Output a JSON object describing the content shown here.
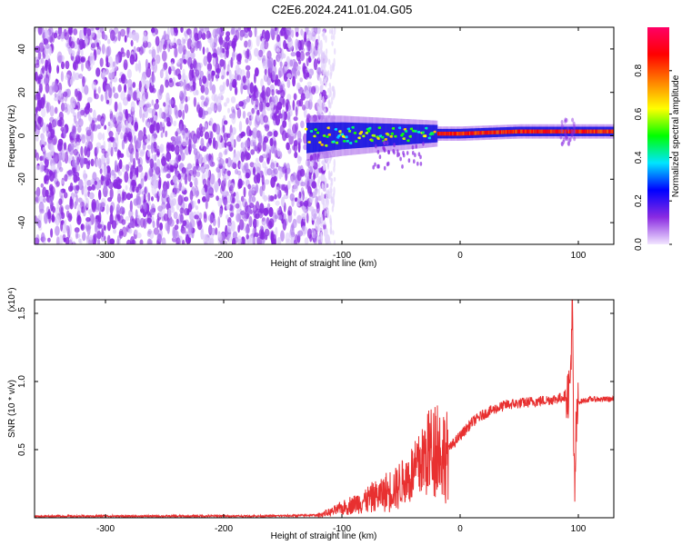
{
  "title": "C2E6.2024.241.01.04.G05",
  "chart_data": [
    {
      "type": "heatmap",
      "xlabel": "Height of straight line (km)",
      "ylabel": "Frequency (Hz)",
      "xlim": [
        -360,
        130
      ],
      "ylim": [
        -50,
        50
      ],
      "xticks": [
        -300,
        -200,
        -100,
        0,
        100
      ],
      "yticks": [
        -40,
        -20,
        0,
        20,
        40
      ],
      "grid": false,
      "colorbar": {
        "label": "Normalized spectral amplitude",
        "range": [
          0,
          1
        ],
        "ticks": [
          0.0,
          0.2,
          0.4,
          0.6,
          0.8
        ],
        "colormap": "rainbow (violet to red)",
        "colors": [
          "#f2e6ff",
          "#8a2be2",
          "#0000ff",
          "#00e5ff",
          "#00ff00",
          "#ffff00",
          "#ff8000",
          "#ff0000",
          "#ff0066"
        ]
      },
      "features": {
        "noise_region_x": [
          -360,
          -120
        ],
        "noise_amplitude": 0.1,
        "signal_band_x": [
          -130,
          130
        ],
        "signal_center_hz": [
          [
            -130,
            -1
          ],
          [
            -100,
            0
          ],
          [
            -60,
            0.5
          ],
          [
            -20,
            1
          ],
          [
            0,
            1
          ],
          [
            50,
            2
          ],
          [
            130,
            2
          ]
        ]
      }
    },
    {
      "type": "line",
      "xlabel": "Height of straight line (km)",
      "ylabel": "SNR (10 * v/v)",
      "y_multiplier": "(x10⁴)",
      "xlim": [
        -360,
        130
      ],
      "ylim": [
        0,
        1.6
      ],
      "xticks": [
        -300,
        -200,
        -100,
        0,
        100
      ],
      "yticks": [
        0.5,
        1.0,
        1.5
      ],
      "grid": false,
      "series": [
        {
          "color": "#e83030",
          "points": [
            [
              -360,
              0.01
            ],
            [
              -340,
              0.012
            ],
            [
              -320,
              0.01
            ],
            [
              -300,
              0.013
            ],
            [
              -280,
              0.01
            ],
            [
              -260,
              0.012
            ],
            [
              -240,
              0.011
            ],
            [
              -220,
              0.012
            ],
            [
              -200,
              0.013
            ],
            [
              -180,
              0.012
            ],
            [
              -160,
              0.013
            ],
            [
              -140,
              0.015
            ],
            [
              -120,
              0.02
            ],
            [
              -110,
              0.04
            ],
            [
              -100,
              0.07
            ],
            [
              -90,
              0.1
            ],
            [
              -80,
              0.13
            ],
            [
              -70,
              0.16
            ],
            [
              -60,
              0.2
            ],
            [
              -50,
              0.25
            ],
            [
              -40,
              0.32
            ],
            [
              -30,
              0.45
            ],
            [
              -20,
              0.55
            ],
            [
              -15,
              0.45
            ],
            [
              -10,
              0.5
            ],
            [
              -5,
              0.55
            ],
            [
              0,
              0.6
            ],
            [
              5,
              0.65
            ],
            [
              10,
              0.7
            ],
            [
              20,
              0.76
            ],
            [
              30,
              0.8
            ],
            [
              40,
              0.83
            ],
            [
              50,
              0.84
            ],
            [
              60,
              0.85
            ],
            [
              70,
              0.86
            ],
            [
              80,
              0.87
            ],
            [
              85,
              0.88
            ],
            [
              90,
              0.9
            ],
            [
              93,
              0.95
            ],
            [
              95,
              1.6
            ],
            [
              96,
              0.5
            ],
            [
              97,
              0.2
            ],
            [
              98,
              0.6
            ],
            [
              100,
              0.85
            ],
            [
              110,
              0.87
            ],
            [
              120,
              0.87
            ],
            [
              130,
              0.87
            ]
          ]
        }
      ]
    }
  ]
}
